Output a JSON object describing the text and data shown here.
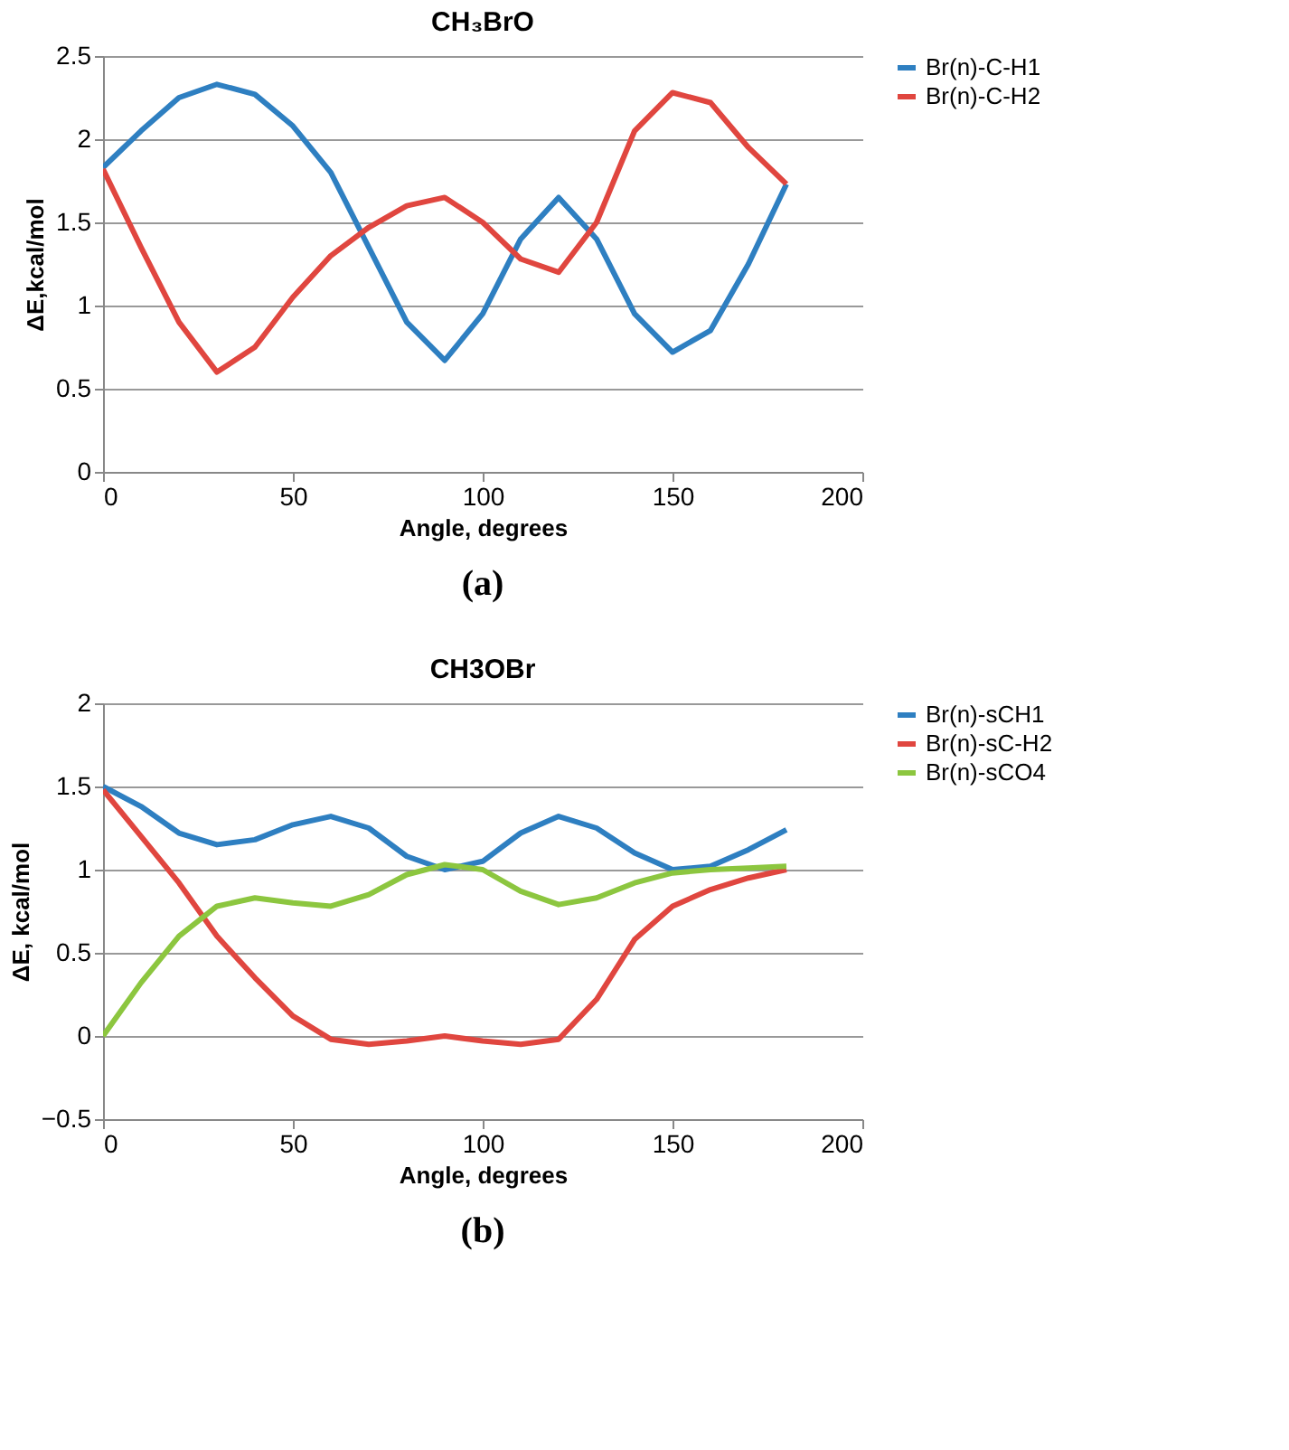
{
  "chart_data": [
    {
      "type": "line",
      "title": "CH₃BrO",
      "xlabel": "Angle, degrees",
      "ylabel": "ΔE,kcal/mol",
      "x": [
        0,
        10,
        20,
        30,
        40,
        50,
        60,
        70,
        80,
        90,
        100,
        110,
        120,
        130,
        140,
        150,
        160,
        170,
        180
      ],
      "series": [
        {
          "name": "Br(n)-C-H1",
          "color": "#2e7fc1",
          "values": [
            1.83,
            2.05,
            2.25,
            2.33,
            2.27,
            2.08,
            1.8,
            1.35,
            0.9,
            0.67,
            0.95,
            1.4,
            1.65,
            1.4,
            0.95,
            0.72,
            0.85,
            1.25,
            1.73
          ]
        },
        {
          "name": "Br(n)-C-H2",
          "color": "#e0463f",
          "values": [
            1.82,
            1.35,
            0.9,
            0.6,
            0.75,
            1.05,
            1.3,
            1.47,
            1.6,
            1.65,
            1.5,
            1.28,
            1.2,
            1.5,
            2.05,
            2.28,
            2.22,
            1.95,
            1.73
          ]
        }
      ],
      "xlim": [
        0,
        200
      ],
      "xticks": [
        0,
        50,
        100,
        150,
        200
      ],
      "ylim": [
        0,
        2.5
      ],
      "yticks": [
        0,
        0.5,
        1,
        1.5,
        2,
        2.5
      ],
      "grid": "y",
      "legend": "right",
      "line_style": "solid",
      "annotations": [
        "(a)"
      ]
    },
    {
      "type": "line",
      "title": "CH3OBr",
      "xlabel": "Angle, degrees",
      "ylabel": "ΔE, kcal/mol",
      "x": [
        0,
        10,
        20,
        30,
        40,
        50,
        60,
        70,
        80,
        90,
        100,
        110,
        120,
        130,
        140,
        150,
        160,
        170,
        180
      ],
      "series": [
        {
          "name": "Br(n)-sCH1",
          "color": "#2e7fc1",
          "values": [
            1.5,
            1.38,
            1.22,
            1.15,
            1.18,
            1.27,
            1.32,
            1.25,
            1.08,
            1.0,
            1.05,
            1.22,
            1.32,
            1.25,
            1.1,
            1.0,
            1.02,
            1.12,
            1.24
          ]
        },
        {
          "name": "Br(n)-sC-H2",
          "color": "#e0463f",
          "values": [
            1.48,
            1.2,
            0.92,
            0.6,
            0.35,
            0.12,
            -0.02,
            -0.05,
            -0.03,
            0.0,
            -0.03,
            -0.05,
            -0.02,
            0.22,
            0.58,
            0.78,
            0.88,
            0.95,
            1.0
          ]
        },
        {
          "name": "Br(n)-sCO4",
          "color": "#8cc63f",
          "values": [
            0.0,
            0.32,
            0.6,
            0.78,
            0.83,
            0.8,
            0.78,
            0.85,
            0.97,
            1.03,
            1.0,
            0.87,
            0.79,
            0.83,
            0.92,
            0.98,
            1.0,
            1.01,
            1.02
          ]
        }
      ],
      "xlim": [
        0,
        200
      ],
      "xticks": [
        0,
        50,
        100,
        150,
        200
      ],
      "ylim": [
        -0.5,
        2
      ],
      "yticks": [
        -0.5,
        0,
        0.5,
        1,
        1.5,
        2
      ],
      "grid": "y",
      "legend": "right",
      "line_style": "solid",
      "annotations": [
        "(b)"
      ]
    }
  ]
}
